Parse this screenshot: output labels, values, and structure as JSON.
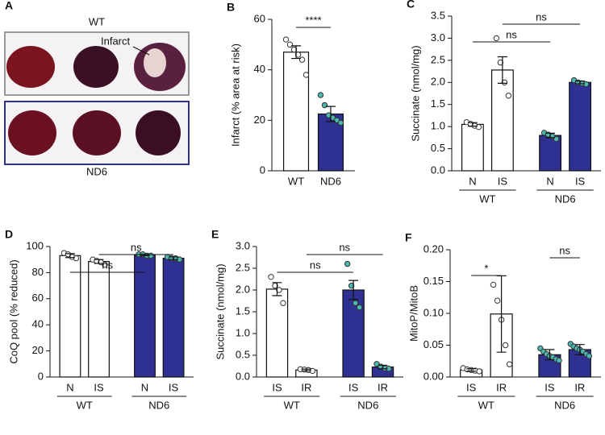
{
  "image_panel": {
    "panel": "A",
    "top_label": "WT",
    "infarct_label": "Infarct",
    "bottom_label": "ND6"
  },
  "chart_data": [
    {
      "type": "bar",
      "panel": "B",
      "ylabel": "Infarct (% area at risk)",
      "categories": [
        "WT",
        "ND6"
      ],
      "values": [
        47,
        22.5
      ],
      "errors": [
        2.5,
        3
      ],
      "colors": [
        "#ffffff",
        "#2e3192"
      ],
      "point_colors": [
        "#ffffff",
        "#4db8b0"
      ],
      "points": [
        [
          52,
          50,
          48,
          46,
          44,
          38
        ],
        [
          30,
          26,
          22,
          21,
          20,
          19
        ]
      ],
      "ylim": [
        0,
        60
      ],
      "yticks": [
        0,
        20,
        40,
        60
      ],
      "annotations": [
        {
          "text": "****",
          "from": "WT",
          "to": "ND6"
        }
      ]
    },
    {
      "type": "bar",
      "panel": "C",
      "ylabel": "Succinate (nmol/mg)",
      "categories": [
        "N",
        "IS",
        "N",
        "IS"
      ],
      "groups": [
        "WT",
        "ND6"
      ],
      "values": [
        1.05,
        2.28,
        0.8,
        2.0
      ],
      "errors": [
        0.04,
        0.3,
        0.05,
        0.03
      ],
      "colors": [
        "#ffffff",
        "#ffffff",
        "#2e3192",
        "#2e3192"
      ],
      "point_colors": [
        "#ffffff",
        "#ffffff",
        "#4db8b0",
        "#4db8b0"
      ],
      "points": [
        [
          1.1,
          1.06,
          1.02,
          0.99
        ],
        [
          3.0,
          2.45,
          2.0,
          1.7
        ],
        [
          0.86,
          0.82,
          0.78,
          0.72
        ],
        [
          2.05,
          2.0,
          1.98,
          1.96
        ]
      ],
      "ylim": [
        0,
        3.5
      ],
      "yticks": [
        {
          "value": 0,
          "label": "0.0"
        },
        {
          "value": 0.5,
          "label": "0.5"
        },
        {
          "value": 1,
          "label": "1.0"
        },
        {
          "value": 1.5,
          "label": "1.5"
        },
        {
          "value": 2,
          "label": "2.0"
        },
        {
          "value": 2.5,
          "label": "2.5"
        },
        {
          "value": 3,
          "label": "3.0"
        },
        {
          "value": 3.5,
          "label": "3.5"
        }
      ],
      "annotations": [
        {
          "text": "ns",
          "from": 0,
          "to": 2
        },
        {
          "text": "ns",
          "from": 1,
          "to": 3
        }
      ]
    },
    {
      "type": "bar",
      "panel": "D",
      "ylabel": "CoQ pool (% reduced)",
      "categories": [
        "N",
        "IS",
        "N",
        "IS"
      ],
      "groups": [
        "WT",
        "ND6"
      ],
      "values": [
        93,
        88.5,
        93.5,
        91
      ],
      "errors": [
        1.5,
        1.5,
        0.5,
        1
      ],
      "colors": [
        "#ffffff",
        "#ffffff",
        "#2e3192",
        "#2e3192"
      ],
      "point_colors": [
        "#ffffff",
        "#ffffff",
        "#4db8b0",
        "#4db8b0"
      ],
      "points": [
        [
          95,
          94,
          92,
          91
        ],
        [
          90,
          89,
          88,
          86
        ],
        [
          94,
          94,
          93,
          93
        ],
        [
          92,
          91,
          91,
          90
        ]
      ],
      "ylim": [
        0,
        100
      ],
      "yticks": [
        0,
        20,
        40,
        60,
        80,
        100
      ],
      "annotations": [
        {
          "text": "ns",
          "from": 0,
          "to": 2
        },
        {
          "text": "ns",
          "from": 1,
          "to": 3
        }
      ]
    },
    {
      "type": "bar",
      "panel": "E",
      "ylabel": "Succinate (nmol/mg)",
      "categories": [
        "IS",
        "IR",
        "IS",
        "IR"
      ],
      "groups": [
        "WT",
        "ND6"
      ],
      "values": [
        2.02,
        0.16,
        2.0,
        0.23
      ],
      "errors": [
        0.15,
        0.02,
        0.22,
        0.04
      ],
      "colors": [
        "#ffffff",
        "#ffffff",
        "#2e3192",
        "#2e3192"
      ],
      "point_colors": [
        "#ffffff",
        "#ffffff",
        "#4db8b0",
        "#4db8b0"
      ],
      "points": [
        [
          2.3,
          2.1,
          2.0,
          1.7
        ],
        [
          0.18,
          0.17,
          0.16,
          0.14
        ],
        [
          2.6,
          2.1,
          1.7,
          1.6
        ],
        [
          0.3,
          0.24,
          0.2,
          0.19
        ]
      ],
      "ylim": [
        0,
        3
      ],
      "yticks": [
        {
          "value": 0,
          "label": "0.0"
        },
        {
          "value": 0.5,
          "label": "0.5"
        },
        {
          "value": 1,
          "label": "1.0"
        },
        {
          "value": 1.5,
          "label": "1.5"
        },
        {
          "value": 2,
          "label": "2.0"
        },
        {
          "value": 2.5,
          "label": "2.5"
        },
        {
          "value": 3,
          "label": "3.0"
        }
      ],
      "annotations": [
        {
          "text": "ns",
          "from": 0,
          "to": 2
        },
        {
          "text": "ns",
          "from": 1,
          "to": 3
        }
      ]
    },
    {
      "type": "bar",
      "panel": "F",
      "ylabel": "MitoP/MitoB",
      "categories": [
        "IS",
        "IR",
        "IS",
        "IR"
      ],
      "groups": [
        "WT",
        "ND6"
      ],
      "values": [
        0.011,
        0.099,
        0.035,
        0.043
      ],
      "errors": [
        0.002,
        0.06,
        0.008,
        0.008
      ],
      "colors": [
        "#ffffff",
        "#ffffff",
        "#2e3192",
        "#2e3192"
      ],
      "point_colors": [
        "#ffffff",
        "#ffffff",
        "#4db8b0",
        "#4db8b0"
      ],
      "points": [
        [
          0.014,
          0.012,
          0.011,
          0.01,
          0.009
        ],
        [
          0.145,
          0.12,
          0.09,
          0.05,
          0.02
        ],
        [
          0.045,
          0.04,
          0.036,
          0.033,
          0.031,
          0.028,
          0.026
        ],
        [
          0.052,
          0.048,
          0.045,
          0.043,
          0.04,
          0.036,
          0.033
        ]
      ],
      "ylim": [
        0,
        0.2
      ],
      "yticks": [
        {
          "value": 0,
          "label": "0.00"
        },
        {
          "value": 0.05,
          "label": "0.05"
        },
        {
          "value": 0.1,
          "label": "0.10"
        },
        {
          "value": 0.15,
          "label": "0.15"
        },
        {
          "value": 0.2,
          "label": "0.20"
        }
      ],
      "annotations": [
        {
          "text": "*",
          "from": 0,
          "to": 1
        },
        {
          "text": "ns",
          "from": 2,
          "to": 3
        }
      ]
    }
  ]
}
